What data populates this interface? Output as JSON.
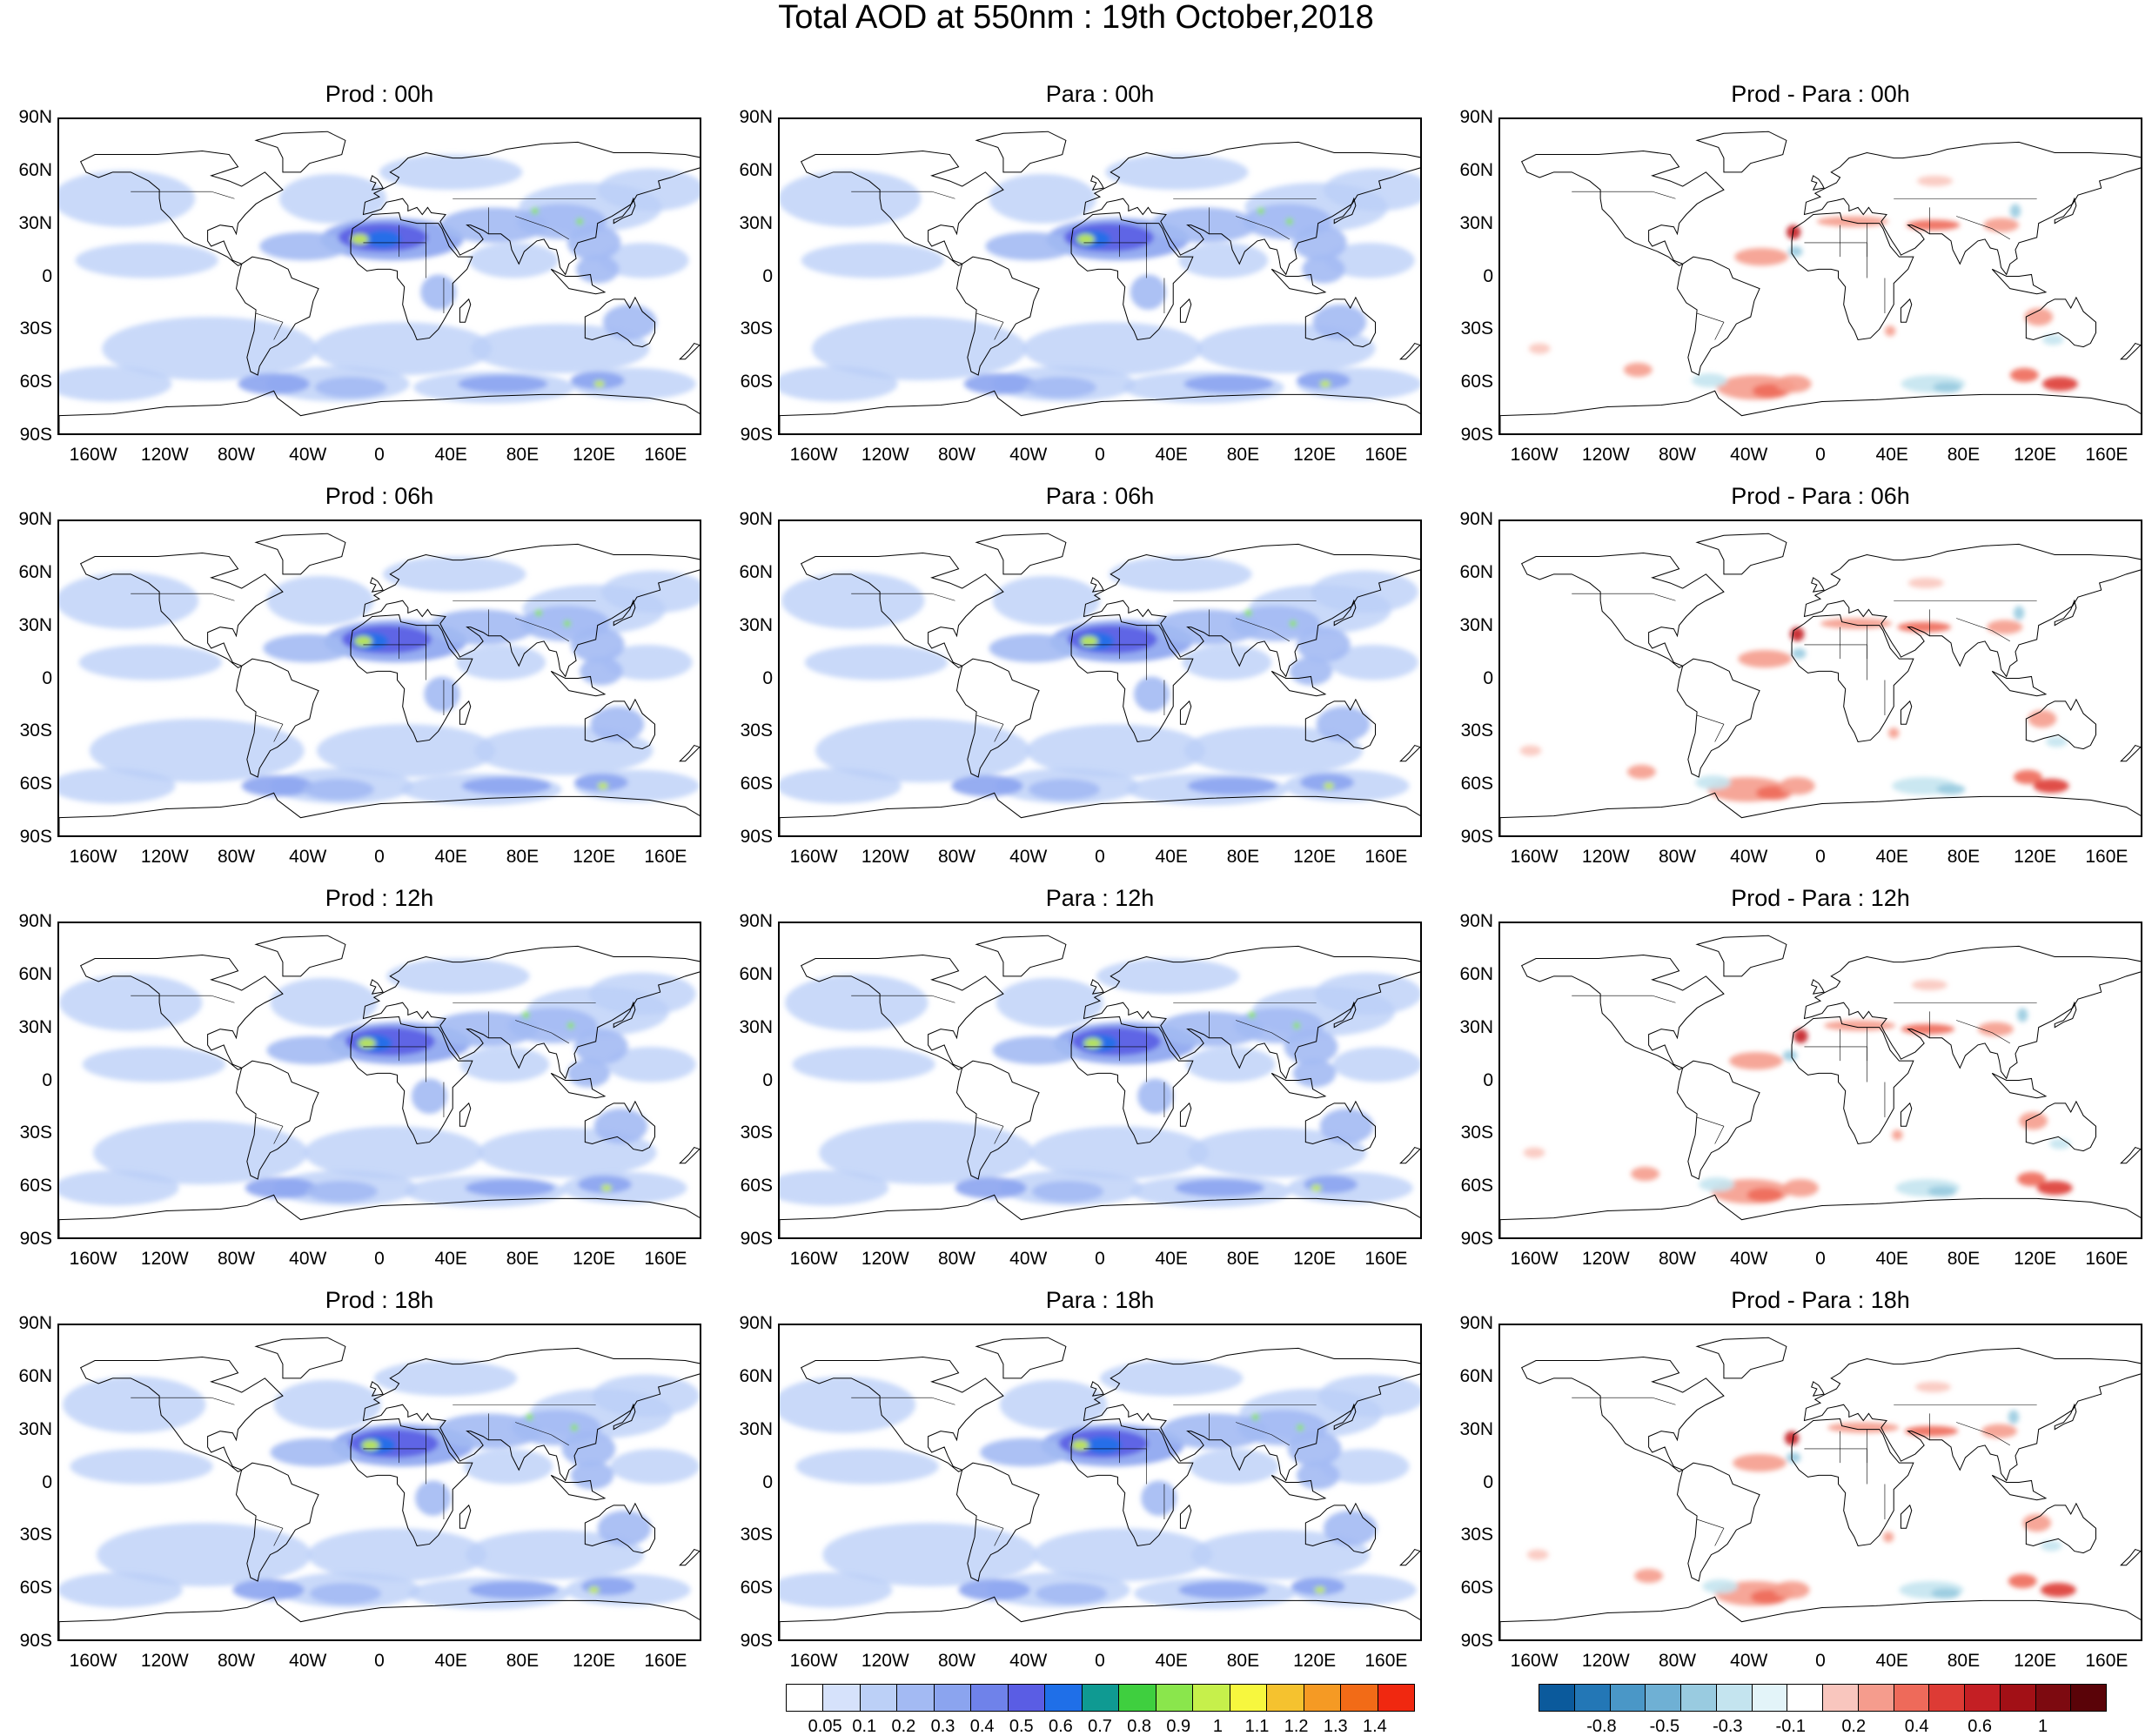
{
  "title": "Total AOD at 550nm : 19th October,2018",
  "lat_labels": [
    "90N",
    "60N",
    "30N",
    "0",
    "30S",
    "60S",
    "90S"
  ],
  "lon_labels": [
    "160W",
    "120W",
    "80W",
    "40W",
    "0",
    "40E",
    "80E",
    "120E",
    "160E"
  ],
  "panels": [
    {
      "title": "Prod : 00h",
      "kind": "aod"
    },
    {
      "title": "Para : 00h",
      "kind": "aod"
    },
    {
      "title": "Prod - Para : 00h",
      "kind": "diff"
    },
    {
      "title": "Prod : 06h",
      "kind": "aod"
    },
    {
      "title": "Para : 06h",
      "kind": "aod"
    },
    {
      "title": "Prod - Para : 06h",
      "kind": "diff"
    },
    {
      "title": "Prod : 12h",
      "kind": "aod"
    },
    {
      "title": "Para : 12h",
      "kind": "aod"
    },
    {
      "title": "Prod - Para : 12h",
      "kind": "diff"
    },
    {
      "title": "Prod : 18h",
      "kind": "aod"
    },
    {
      "title": "Para : 18h",
      "kind": "aod"
    },
    {
      "title": "Prod - Para : 18h",
      "kind": "diff"
    }
  ],
  "aod_colorbar": {
    "labels": [
      "0.05",
      "0.1",
      "0.2",
      "0.3",
      "0.4",
      "0.5",
      "0.6",
      "0.7",
      "0.8",
      "0.9",
      "1",
      "1.1",
      "1.2",
      "1.3",
      "1.4"
    ],
    "colors": [
      "#ffffff",
      "#d6e2fb",
      "#bcd0f7",
      "#a3baf3",
      "#8ba4ef",
      "#6f82ea",
      "#5a5de4",
      "#1f6fe8",
      "#0f9a92",
      "#3fcf3f",
      "#8ae64c",
      "#c6f04b",
      "#f7f73e",
      "#f5c22f",
      "#f59a24",
      "#f26b17",
      "#f02810"
    ]
  },
  "diff_colorbar": {
    "labels": [
      "-0.8",
      "-0.5",
      "-0.3",
      "-0.1",
      "0.2",
      "0.4",
      "0.6",
      "1"
    ],
    "colors": [
      "#0b5a9c",
      "#2377b6",
      "#4a97c7",
      "#6fb0d4",
      "#99cbe0",
      "#c4e4ef",
      "#e3f4f9",
      "#ffffff",
      "#f9c6be",
      "#f59c8d",
      "#ee6a5a",
      "#dd3b35",
      "#c41f24",
      "#a21016",
      "#7d0a10",
      "#5a0308"
    ]
  }
}
